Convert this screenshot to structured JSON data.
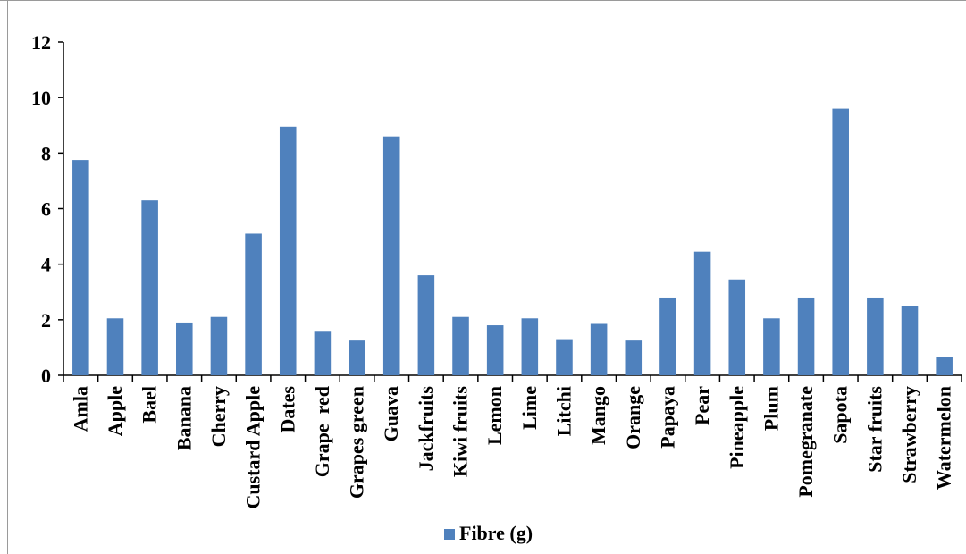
{
  "chart_data": {
    "type": "bar",
    "categories": [
      "Amla",
      "Apple",
      "Bael",
      "Banana",
      "Cherry",
      "Custard Apple",
      "Dates",
      "Grape  red",
      "Grapes green",
      "Guava",
      "Jackfruits",
      "Kiwi fruits",
      "Lemon",
      "Lime",
      "Litchi",
      "Mango",
      "Orange",
      "Papaya",
      "Pear",
      "Pineapple",
      "Plum",
      "Pomegranate",
      "Sapota",
      "Star fruits",
      "Strawberry",
      "Watermelon"
    ],
    "series": [
      {
        "name": "Fibre (g)",
        "values": [
          7.75,
          2.05,
          6.3,
          1.9,
          2.1,
          5.1,
          8.95,
          1.6,
          1.25,
          8.6,
          3.6,
          2.1,
          1.8,
          2.05,
          1.3,
          1.85,
          1.25,
          2.8,
          4.45,
          3.45,
          2.05,
          2.8,
          9.6,
          2.8,
          2.5,
          0.65
        ]
      }
    ],
    "ylim": [
      0,
      12
    ],
    "yticks": [
      "0",
      "2",
      "4",
      "6",
      "8",
      "10",
      "12"
    ],
    "color": "#4f81bd",
    "legend_position": "bottom",
    "grid": false
  }
}
